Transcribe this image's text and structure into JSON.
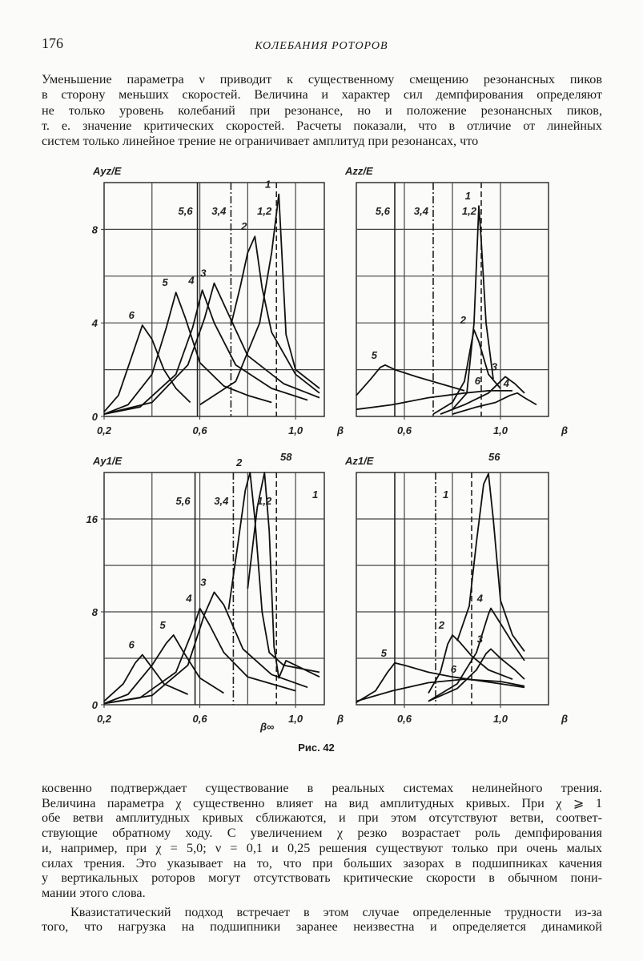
{
  "header": {
    "page_number": "176",
    "running_title": "КОЛЕБАНИЯ РОТОРОВ"
  },
  "top_text": {
    "lines": [
      "Уменьшение параметра ν приводит к существенному смещению резонансных пиков",
      "в сторону меньших скоростей. Величина и характер сил демпфирования определяют",
      "не только уровень колебаний при резонансе, но и положение резонансных пиков,",
      "т. е. значение критических скоростей. Расчеты показали, что в отличие от линейных",
      "систем только линейное трение не ограничивает амплитуд при резонансах, что"
    ]
  },
  "figure_caption": "Рис. 42",
  "bottom_text": {
    "paragraphs": [
      {
        "lines": [
          "косвенно подтверждает существование в реальных системах нелинейного трения.",
          "Величина параметра χ существенно влияет на вид амплитудных кривых. При χ ⩾ 1",
          "обе ветви амплитудных кривых сближаются, и при этом отсутствуют ветви, соответ-",
          "ствующие обратному ходу. С увеличением χ резко возрастает роль демпфирования",
          "и, например, при χ = 5,0; ν = 0,1 и 0,25 решения существуют только при очень малых",
          "силах трения. Это указывает на то, что при больших зазорах в подшипниках качения",
          "у вертикальных роторов могут отсутствовать критические скорости в обычном пони-",
          "мании этого слова."
        ]
      },
      {
        "lines": [
          "Квазистатический подход встречает в этом случае определенные трудности из-за",
          "того, что нагрузка на подшипники заранее неизвестна и определяется динамикой"
        ]
      }
    ]
  },
  "chart_data": [
    {
      "type": "line",
      "y_label": "Ayz/E",
      "x_label": "β",
      "xlim": [
        0.2,
        1.12
      ],
      "ylim": [
        0,
        10
      ],
      "xticks": [
        {
          "value": 0.2,
          "label": "0,2"
        },
        {
          "value": 0.6,
          "label": "0,6"
        },
        {
          "value": 1.0,
          "label": "1,0"
        }
      ],
      "yticks": [
        0,
        4,
        8
      ],
      "xgrid": [
        0.4,
        0.6,
        0.8,
        1.0
      ],
      "ygrid": [
        2,
        4,
        6,
        8
      ],
      "markers": [
        {
          "x": 0.59,
          "label": "5,6",
          "style": "solid"
        },
        {
          "x": 0.73,
          "label": "3,4",
          "style": "dashdot"
        },
        {
          "x": 0.92,
          "label": "1,2",
          "style": "dashed"
        }
      ],
      "annotations": [],
      "series": [
        {
          "name": "6",
          "x": [
            0.2,
            0.26,
            0.31,
            0.36,
            0.4,
            0.45,
            0.5,
            0.56
          ],
          "values": [
            0.2,
            0.9,
            2.4,
            3.9,
            3.3,
            2.0,
            1.2,
            0.6
          ]
        },
        {
          "name": "5",
          "x": [
            0.2,
            0.3,
            0.4,
            0.46,
            0.5,
            0.54,
            0.6,
            0.7,
            0.8,
            0.9
          ],
          "values": [
            0.1,
            0.5,
            1.8,
            3.8,
            5.3,
            4.2,
            2.3,
            1.3,
            0.9,
            0.6
          ]
        },
        {
          "name": "4",
          "x": [
            0.2,
            0.35,
            0.5,
            0.57,
            0.61,
            0.66,
            0.75,
            0.9,
            1.05
          ],
          "values": [
            0.1,
            0.4,
            1.8,
            3.8,
            5.4,
            4.0,
            2.2,
            1.2,
            0.7
          ]
        },
        {
          "name": "3",
          "x": [
            0.2,
            0.4,
            0.55,
            0.62,
            0.66,
            0.7,
            0.8,
            0.95,
            1.1
          ],
          "values": [
            0.1,
            0.6,
            2.2,
            4.2,
            5.7,
            4.8,
            2.6,
            1.4,
            0.8
          ]
        },
        {
          "name": "2",
          "x": [
            0.73,
            0.77,
            0.8,
            0.83,
            0.86,
            0.9,
            1.0,
            1.1
          ],
          "values": [
            3.9,
            5.6,
            7.0,
            7.7,
            5.5,
            3.6,
            1.8,
            1.0
          ]
        },
        {
          "name": "1",
          "x": [
            0.6,
            0.75,
            0.85,
            0.9,
            0.93,
            0.94,
            0.96,
            1.0,
            1.1
          ],
          "values": [
            0.5,
            1.5,
            4.0,
            7.0,
            9.5,
            7.5,
            3.5,
            2.0,
            1.2
          ]
        }
      ]
    },
    {
      "type": "line",
      "y_label": "Azz/E",
      "x_label": "β",
      "xlim": [
        0.4,
        1.2
      ],
      "ylim": [
        0,
        10
      ],
      "xticks": [
        {
          "value": 0.6,
          "label": "0,6"
        },
        {
          "value": 1.0,
          "label": "1,0"
        }
      ],
      "yticks": [],
      "xgrid": [
        0.6,
        0.8,
        1.0
      ],
      "ygrid": [
        2,
        4,
        6,
        8
      ],
      "markers": [
        {
          "x": 0.56,
          "label": "5,6",
          "style": "solid"
        },
        {
          "x": 0.72,
          "label": "3,4",
          "style": "dashdot"
        },
        {
          "x": 0.92,
          "label": "1,2",
          "style": "dashed"
        }
      ],
      "annotations": [],
      "series": [
        {
          "name": "5",
          "x": [
            0.4,
            0.46,
            0.5,
            0.52,
            0.56,
            0.65,
            0.75,
            0.85
          ],
          "values": [
            0.9,
            1.6,
            2.1,
            2.2,
            2.0,
            1.7,
            1.4,
            1.1
          ]
        },
        {
          "name": "6",
          "x": [
            0.4,
            0.55,
            0.7,
            0.85,
            0.95,
            1.05
          ],
          "values": [
            0.3,
            0.5,
            0.8,
            1.0,
            1.1,
            1.1
          ]
        },
        {
          "name": "2",
          "x": [
            0.72,
            0.8,
            0.85,
            0.88,
            0.89,
            0.91,
            0.95,
            1.0
          ],
          "values": [
            0.1,
            0.6,
            1.5,
            3.2,
            3.7,
            3.2,
            1.8,
            1.2
          ]
        },
        {
          "name": "1",
          "x": [
            0.8,
            0.86,
            0.89,
            0.91,
            0.92,
            0.94,
            0.97
          ],
          "values": [
            0.3,
            1.0,
            4.0,
            9.0,
            7.5,
            4.0,
            1.6
          ]
        },
        {
          "name": "3",
          "x": [
            0.75,
            0.85,
            0.95,
            1.0,
            1.02,
            1.06,
            1.1
          ],
          "values": [
            0.1,
            0.5,
            1.0,
            1.5,
            1.7,
            1.4,
            1.0
          ]
        },
        {
          "name": "4",
          "x": [
            0.8,
            0.9,
            0.98,
            1.04,
            1.07,
            1.1,
            1.15
          ],
          "values": [
            0.1,
            0.4,
            0.6,
            0.9,
            1.0,
            0.8,
            0.5
          ]
        }
      ]
    },
    {
      "type": "line",
      "y_label": "Ay1/E",
      "x_label": "β",
      "xlim": [
        0.2,
        1.12
      ],
      "ylim": [
        0,
        20
      ],
      "xticks": [
        {
          "value": 0.2,
          "label": "0,2"
        },
        {
          "value": 0.6,
          "label": "0,6"
        },
        {
          "value": 1.0,
          "label": "1,0"
        }
      ],
      "yticks": [
        0,
        8,
        16
      ],
      "xgrid": [
        0.4,
        0.6,
        0.8,
        1.0
      ],
      "ygrid": [
        4,
        8,
        12,
        16
      ],
      "markers": [
        {
          "x": 0.58,
          "label": "5,6",
          "style": "solid"
        },
        {
          "x": 0.74,
          "label": "3,4",
          "style": "dashdot"
        },
        {
          "x": 0.92,
          "label": "1,2",
          "style": "dashed"
        }
      ],
      "annotations": [
        "58",
        "1",
        "β∞"
      ],
      "series": [
        {
          "name": "6",
          "x": [
            0.2,
            0.28,
            0.33,
            0.36,
            0.4,
            0.45,
            0.55
          ],
          "values": [
            0.3,
            1.8,
            3.6,
            4.3,
            3.2,
            1.8,
            0.9
          ]
        },
        {
          "name": "5",
          "x": [
            0.2,
            0.3,
            0.4,
            0.46,
            0.49,
            0.53,
            0.6,
            0.7
          ],
          "values": [
            0.1,
            0.9,
            3.4,
            5.3,
            6.0,
            4.6,
            2.3,
            1.0
          ]
        },
        {
          "name": "4",
          "x": [
            0.2,
            0.35,
            0.5,
            0.57,
            0.6,
            0.64,
            0.7,
            0.8,
            1.0
          ],
          "values": [
            0.1,
            0.6,
            2.8,
            6.4,
            8.3,
            6.9,
            4.5,
            2.4,
            1.2
          ]
        },
        {
          "name": "3",
          "x": [
            0.2,
            0.4,
            0.55,
            0.62,
            0.66,
            0.7,
            0.78,
            0.9,
            1.05
          ],
          "values": [
            0.1,
            0.8,
            3.4,
            7.8,
            9.7,
            8.6,
            4.8,
            2.6,
            1.5
          ]
        },
        {
          "name": "2",
          "x": [
            0.72,
            0.76,
            0.79,
            0.81,
            0.83,
            0.86,
            0.89,
            0.95,
            1.1
          ],
          "values": [
            8.2,
            14,
            18.5,
            20,
            16,
            8,
            4.5,
            3.4,
            2.8
          ]
        },
        {
          "x": [
            0.8,
            0.84,
            0.87,
            0.89,
            0.91,
            0.93,
            0.96,
            1.02,
            1.1
          ],
          "values": [
            10,
            17,
            20,
            15,
            5,
            2.3,
            3.8,
            3.2,
            2.4
          ]
        }
      ]
    },
    {
      "type": "line",
      "y_label": "Az1/E",
      "x_label": "β",
      "xlim": [
        0.4,
        1.2
      ],
      "ylim": [
        0,
        20
      ],
      "xticks": [
        {
          "value": 0.6,
          "label": "0,6"
        },
        {
          "value": 1.0,
          "label": "1,0"
        }
      ],
      "yticks": [],
      "xgrid": [
        0.6,
        0.8,
        1.0
      ],
      "ygrid": [
        4,
        8,
        12,
        16
      ],
      "markers": [
        {
          "x": 0.56,
          "style": "solid"
        },
        {
          "x": 0.73,
          "style": "dashdot"
        },
        {
          "x": 0.88,
          "style": "dashed"
        }
      ],
      "annotations": [
        "56",
        "1"
      ],
      "series": [
        {
          "name": "6",
          "x": [
            0.4,
            0.55,
            0.7,
            0.85,
            1.0,
            1.1
          ],
          "values": [
            0.3,
            1.2,
            1.9,
            2.2,
            2.0,
            1.6
          ]
        },
        {
          "name": "5",
          "x": [
            0.4,
            0.48,
            0.53,
            0.56,
            0.6,
            0.7,
            0.8,
            1.0,
            1.1
          ],
          "values": [
            0.2,
            1.2,
            2.8,
            3.6,
            3.4,
            2.8,
            2.4,
            1.8,
            1.5
          ]
        },
        {
          "name": "2",
          "x": [
            0.7,
            0.75,
            0.78,
            0.8,
            0.83,
            0.88,
            0.95,
            1.05
          ],
          "values": [
            1.0,
            2.8,
            5.2,
            6.0,
            5.4,
            4.2,
            3.0,
            2.2
          ]
        },
        {
          "x": [
            0.82,
            0.87,
            0.9,
            0.93,
            0.95,
            0.97,
            1.0,
            1.05,
            1.1
          ],
          "values": [
            5.5,
            8.5,
            14,
            19,
            19.9,
            16,
            9,
            6,
            4.6
          ]
        },
        {
          "name": "4",
          "x": [
            0.7,
            0.82,
            0.9,
            0.95,
            0.96,
            1.0,
            1.06,
            1.1
          ],
          "values": [
            0.3,
            1.8,
            4.5,
            7.8,
            8.3,
            7.0,
            5.0,
            3.8
          ]
        },
        {
          "name": "3",
          "x": [
            0.7,
            0.82,
            0.9,
            0.94,
            0.96,
            1.0,
            1.06,
            1.1
          ],
          "values": [
            0.3,
            1.4,
            3.0,
            4.4,
            4.8,
            4.0,
            3.0,
            2.2
          ]
        }
      ]
    }
  ]
}
